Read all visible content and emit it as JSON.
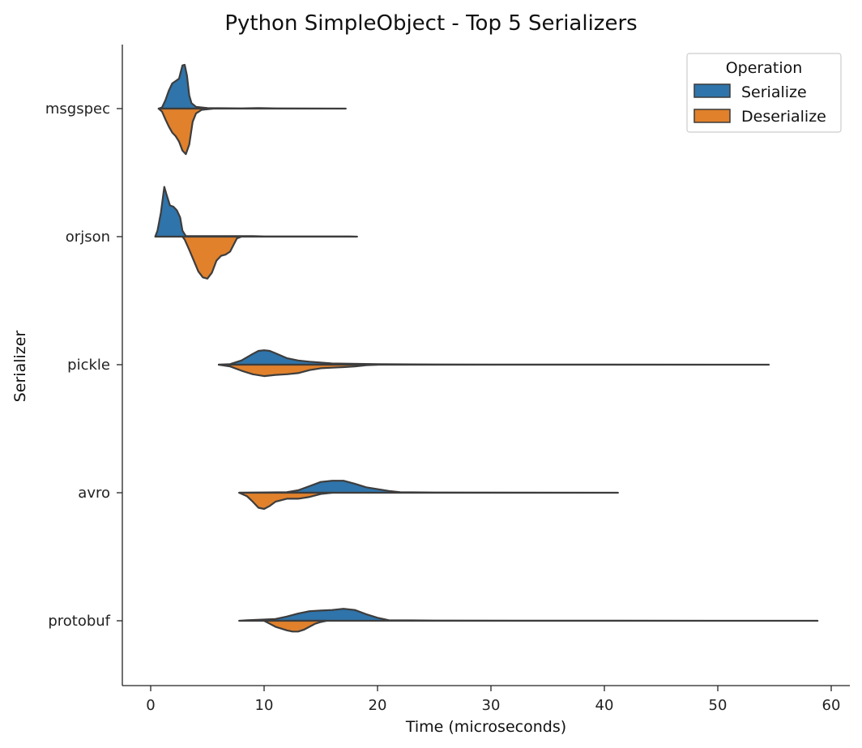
{
  "chart_data": {
    "type": "split-violin",
    "title": "Python SimpleObject - Top 5 Serializers",
    "xlabel": "Time (microseconds)",
    "ylabel": "Serializer",
    "xlim": [
      -2.5,
      62
    ],
    "xticks": [
      "0",
      "10",
      "20",
      "30",
      "40",
      "50",
      "60"
    ],
    "categories": [
      "msgspec",
      "orjson",
      "pickle",
      "avro",
      "protobuf"
    ],
    "legend": {
      "title": "Operation",
      "position": "top-right",
      "entries": [
        {
          "name": "Serialize",
          "color": "#2f74aa"
        },
        {
          "name": "Deserialize",
          "color": "#e1812c"
        }
      ]
    },
    "series": [
      {
        "name": "Serialize",
        "color": "#2f74aa",
        "violins": [
          {
            "category": "msgspec",
            "profile": [
              [
                0.7,
                0
              ],
              [
                1.0,
                0.02
              ],
              [
                1.3,
                0.14
              ],
              [
                1.6,
                0.3
              ],
              [
                1.9,
                0.42
              ],
              [
                2.2,
                0.46
              ],
              [
                2.5,
                0.5
              ],
              [
                2.8,
                0.72
              ],
              [
                3.0,
                0.73
              ],
              [
                3.2,
                0.55
              ],
              [
                3.4,
                0.22
              ],
              [
                3.6,
                0.09
              ],
              [
                4.0,
                0.03
              ],
              [
                5.0,
                0.01
              ],
              [
                8.0,
                0.004
              ],
              [
                9.5,
                0.01
              ],
              [
                11,
                0.004
              ],
              [
                17.2,
                0
              ]
            ]
          },
          {
            "category": "orjson",
            "profile": [
              [
                0.4,
                0
              ],
              [
                0.6,
                0.1
              ],
              [
                0.9,
                0.4
              ],
              [
                1.2,
                0.83
              ],
              [
                1.4,
                0.7
              ],
              [
                1.7,
                0.52
              ],
              [
                2.0,
                0.5
              ],
              [
                2.3,
                0.44
              ],
              [
                2.6,
                0.32
              ],
              [
                2.8,
                0.1
              ],
              [
                3.1,
                0.01
              ],
              [
                9,
                0.01
              ],
              [
                10,
                0.004
              ],
              [
                17.5,
                0.004
              ],
              [
                18.2,
                0
              ]
            ]
          },
          {
            "category": "pickle",
            "profile": [
              [
                6.0,
                0
              ],
              [
                7.0,
                0.01
              ],
              [
                8.0,
                0.07
              ],
              [
                9.0,
                0.18
              ],
              [
                9.5,
                0.23
              ],
              [
                10.0,
                0.24
              ],
              [
                10.5,
                0.23
              ],
              [
                11,
                0.19
              ],
              [
                12,
                0.11
              ],
              [
                13,
                0.07
              ],
              [
                14,
                0.05
              ],
              [
                16,
                0.02
              ],
              [
                20,
                0.01
              ],
              [
                25,
                0.004
              ],
              [
                30,
                0.002
              ],
              [
                40,
                0.002
              ],
              [
                54.5,
                0
              ]
            ]
          },
          {
            "category": "avro",
            "profile": [
              [
                7.8,
                0
              ],
              [
                12,
                0.01
              ],
              [
                13,
                0.04
              ],
              [
                14,
                0.11
              ],
              [
                15,
                0.18
              ],
              [
                16,
                0.2
              ],
              [
                17,
                0.2
              ],
              [
                18,
                0.15
              ],
              [
                19,
                0.09
              ],
              [
                20,
                0.06
              ],
              [
                21,
                0.03
              ],
              [
                22,
                0.01
              ],
              [
                25,
                0.004
              ],
              [
                41.2,
                0
              ]
            ]
          },
          {
            "category": "protobuf",
            "profile": [
              [
                7.8,
                0
              ],
              [
                8.5,
                0.01
              ],
              [
                10,
                0.02
              ],
              [
                11,
                0.03
              ],
              [
                12,
                0.07
              ],
              [
                13,
                0.12
              ],
              [
                14,
                0.16
              ],
              [
                15,
                0.17
              ],
              [
                16,
                0.18
              ],
              [
                17,
                0.2
              ],
              [
                18,
                0.18
              ],
              [
                19,
                0.11
              ],
              [
                20,
                0.05
              ],
              [
                21,
                0.01
              ],
              [
                25,
                0.004
              ],
              [
                40,
                0.002
              ],
              [
                58.8,
                0
              ]
            ]
          }
        ]
      },
      {
        "name": "Deserialize",
        "color": "#e1812c",
        "violins": [
          {
            "category": "msgspec",
            "profile": [
              [
                0.7,
                0
              ],
              [
                1.0,
                0.05
              ],
              [
                1.3,
                0.18
              ],
              [
                1.6,
                0.3
              ],
              [
                1.9,
                0.4
              ],
              [
                2.2,
                0.46
              ],
              [
                2.5,
                0.55
              ],
              [
                2.8,
                0.7
              ],
              [
                3.1,
                0.76
              ],
              [
                3.4,
                0.6
              ],
              [
                3.7,
                0.22
              ],
              [
                4.0,
                0.08
              ],
              [
                4.5,
                0.02
              ],
              [
                5.5,
                0
              ]
            ]
          },
          {
            "category": "orjson",
            "profile": [
              [
                2.8,
                0
              ],
              [
                3.0,
                0.05
              ],
              [
                3.4,
                0.22
              ],
              [
                3.8,
                0.4
              ],
              [
                4.2,
                0.58
              ],
              [
                4.6,
                0.68
              ],
              [
                5.0,
                0.7
              ],
              [
                5.4,
                0.6
              ],
              [
                5.8,
                0.4
              ],
              [
                6.2,
                0.32
              ],
              [
                6.6,
                0.3
              ],
              [
                7.0,
                0.25
              ],
              [
                7.3,
                0.14
              ],
              [
                7.6,
                0.03
              ],
              [
                8.0,
                0
              ]
            ]
          },
          {
            "category": "pickle",
            "profile": [
              [
                6.0,
                0
              ],
              [
                7.0,
                0.03
              ],
              [
                8,
                0.1
              ],
              [
                9,
                0.16
              ],
              [
                10,
                0.19
              ],
              [
                11,
                0.17
              ],
              [
                12,
                0.16
              ],
              [
                13,
                0.14
              ],
              [
                14,
                0.09
              ],
              [
                15,
                0.06
              ],
              [
                16,
                0.05
              ],
              [
                17,
                0.04
              ],
              [
                18,
                0.03
              ],
              [
                19,
                0.01
              ],
              [
                20,
                0
              ]
            ]
          },
          {
            "category": "avro",
            "profile": [
              [
                7.8,
                0
              ],
              [
                8.5,
                0.06
              ],
              [
                9.0,
                0.15
              ],
              [
                9.5,
                0.25
              ],
              [
                10.0,
                0.27
              ],
              [
                10.5,
                0.22
              ],
              [
                11,
                0.15
              ],
              [
                12,
                0.1
              ],
              [
                13,
                0.1
              ],
              [
                14,
                0.07
              ],
              [
                15,
                0.02
              ],
              [
                16,
                0
              ]
            ]
          },
          {
            "category": "protobuf",
            "profile": [
              [
                10,
                0
              ],
              [
                10.5,
                0.05
              ],
              [
                11,
                0.1
              ],
              [
                12,
                0.16
              ],
              [
                12.5,
                0.18
              ],
              [
                13,
                0.18
              ],
              [
                13.5,
                0.15
              ],
              [
                14,
                0.1
              ],
              [
                14.5,
                0.05
              ],
              [
                15,
                0.02
              ],
              [
                15.5,
                0
              ]
            ]
          }
        ]
      }
    ]
  }
}
